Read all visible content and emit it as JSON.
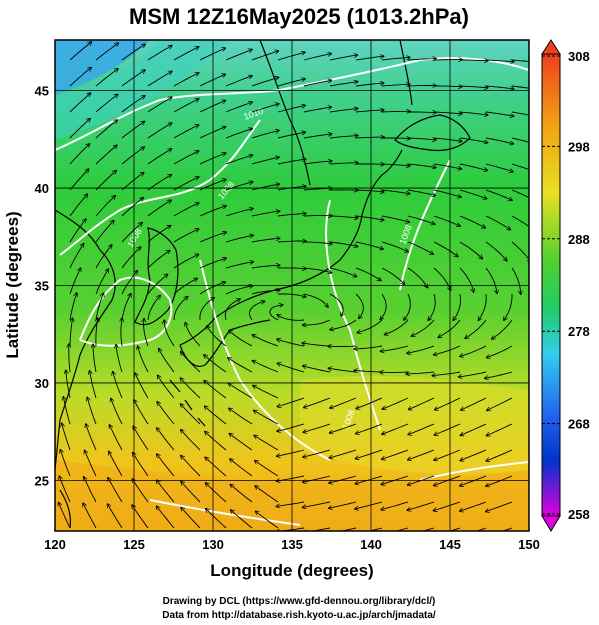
{
  "title": "MSM 12Z16May2025 (1013.2hPa)",
  "map": {
    "xlabel": "Longitude (degrees)",
    "ylabel": "Latitude  (degrees)",
    "xticks": [
      "120",
      "125",
      "130",
      "135",
      "140",
      "145",
      "150"
    ],
    "yticks": [
      "25",
      "30",
      "35",
      "40",
      "45"
    ],
    "xrange": [
      120,
      150
    ],
    "yrange": [
      22.4,
      47.6
    ],
    "grid": true
  },
  "colorbar": {
    "ticks": [
      "308",
      "298",
      "288",
      "278",
      "268",
      "258"
    ],
    "range": [
      258,
      308
    ],
    "colors": {
      "low": "#e000e0",
      "cold": "#0033cc",
      "cool": "#33ccee",
      "mid": "#22cc44",
      "warm": "#f0e020",
      "hot": "#f04020"
    }
  },
  "isobar_labels": [
    "1008",
    "1008",
    "1008",
    "1008",
    "1010"
  ],
  "credits": {
    "line1": "Drawing by DCL (https://www.gfd-dennou.org/library/dcl/)",
    "line2": "Data from http://database.rish.kyoto-u.ac.jp/arch/jmadata/"
  }
}
